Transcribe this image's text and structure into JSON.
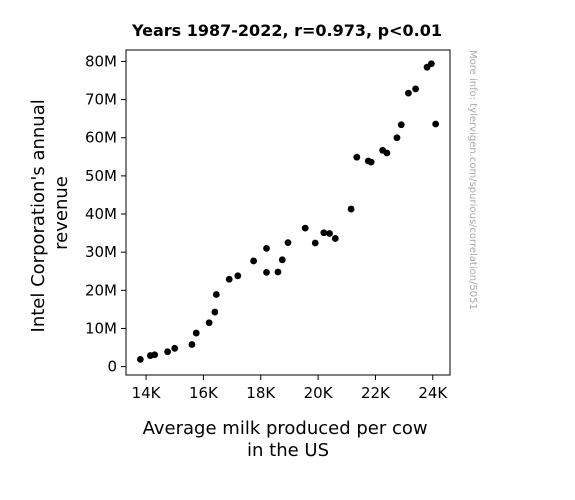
{
  "chart_data": {
    "type": "scatter",
    "title": "Years 1987-2022, r=0.973, p<0.01",
    "xlabel_lines": [
      "Average milk produced per cow",
      "in the US"
    ],
    "ylabel_lines": [
      "Intel Corporation's annual",
      "revenue"
    ],
    "side_note": "More info: tylervigen.com/spurious/correlation/5051",
    "xlim": [
      13300,
      24600
    ],
    "ylim": [
      -2200000,
      83000000
    ],
    "x_ticks": [
      {
        "value": 14000,
        "label": "14K"
      },
      {
        "value": 16000,
        "label": "16K"
      },
      {
        "value": 18000,
        "label": "18K"
      },
      {
        "value": 20000,
        "label": "20K"
      },
      {
        "value": 22000,
        "label": "22K"
      },
      {
        "value": 24000,
        "label": "24K"
      }
    ],
    "y_ticks": [
      {
        "value": 0,
        "label": "0"
      },
      {
        "value": 10000000,
        "label": "10M"
      },
      {
        "value": 20000000,
        "label": "20M"
      },
      {
        "value": 30000000,
        "label": "30M"
      },
      {
        "value": 40000000,
        "label": "40M"
      },
      {
        "value": 50000000,
        "label": "50M"
      },
      {
        "value": 60000000,
        "label": "60M"
      },
      {
        "value": 70000000,
        "label": "70M"
      },
      {
        "value": 80000000,
        "label": "80M"
      }
    ],
    "grid": false,
    "marker_color": "#000000",
    "points": [
      {
        "x": 13800,
        "y": 1900000
      },
      {
        "x": 14150,
        "y": 2900000
      },
      {
        "x": 14300,
        "y": 3100000
      },
      {
        "x": 14750,
        "y": 3900000
      },
      {
        "x": 15000,
        "y": 4800000
      },
      {
        "x": 15600,
        "y": 5800000
      },
      {
        "x": 15750,
        "y": 8800000
      },
      {
        "x": 16200,
        "y": 11500000
      },
      {
        "x": 16400,
        "y": 14300000
      },
      {
        "x": 16450,
        "y": 18900000
      },
      {
        "x": 16900,
        "y": 22900000
      },
      {
        "x": 17200,
        "y": 23800000
      },
      {
        "x": 17750,
        "y": 27700000
      },
      {
        "x": 18200,
        "y": 24700000
      },
      {
        "x": 18200,
        "y": 31000000
      },
      {
        "x": 18600,
        "y": 24800000
      },
      {
        "x": 18750,
        "y": 28000000
      },
      {
        "x": 18950,
        "y": 32500000
      },
      {
        "x": 19550,
        "y": 36300000
      },
      {
        "x": 19900,
        "y": 32400000
      },
      {
        "x": 20200,
        "y": 35100000
      },
      {
        "x": 20400,
        "y": 34900000
      },
      {
        "x": 20600,
        "y": 33600000
      },
      {
        "x": 21150,
        "y": 41300000
      },
      {
        "x": 21350,
        "y": 54900000
      },
      {
        "x": 21750,
        "y": 53900000
      },
      {
        "x": 21850,
        "y": 53600000
      },
      {
        "x": 22250,
        "y": 56700000
      },
      {
        "x": 22400,
        "y": 56000000
      },
      {
        "x": 22750,
        "y": 60000000
      },
      {
        "x": 22900,
        "y": 63400000
      },
      {
        "x": 23150,
        "y": 71700000
      },
      {
        "x": 23400,
        "y": 72800000
      },
      {
        "x": 23800,
        "y": 78500000
      },
      {
        "x": 23950,
        "y": 79400000
      },
      {
        "x": 24100,
        "y": 63600000
      }
    ]
  }
}
